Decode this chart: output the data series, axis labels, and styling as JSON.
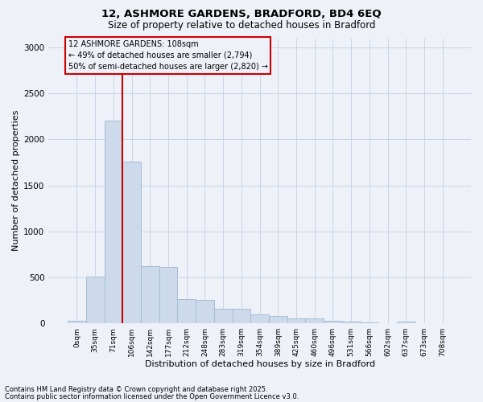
{
  "title": "12, ASHMORE GARDENS, BRADFORD, BD4 6EQ",
  "subtitle": "Size of property relative to detached houses in Bradford",
  "xlabel": "Distribution of detached houses by size in Bradford",
  "ylabel": "Number of detached properties",
  "bar_color": "#ccdaec",
  "bar_edge_color": "#a8bcd4",
  "grid_color": "#c8d4e4",
  "background_color": "#eef2f8",
  "annotation_line_color": "#cc0000",
  "footnote1": "Contains HM Land Registry data © Crown copyright and database right 2025.",
  "footnote2": "Contains public sector information licensed under the Open Government Licence v3.0.",
  "annotation_line1": "12 ASHMORE GARDENS: 108sqm",
  "annotation_line2": "← 49% of detached houses are smaller (2,794)",
  "annotation_line3": "50% of semi-detached houses are larger (2,820) →",
  "categories": [
    "0sqm",
    "35sqm",
    "71sqm",
    "106sqm",
    "142sqm",
    "177sqm",
    "212sqm",
    "248sqm",
    "283sqm",
    "319sqm",
    "354sqm",
    "389sqm",
    "425sqm",
    "460sqm",
    "496sqm",
    "531sqm",
    "566sqm",
    "602sqm",
    "637sqm",
    "673sqm",
    "708sqm"
  ],
  "bar_heights": [
    28,
    510,
    2200,
    1760,
    625,
    615,
    265,
    255,
    155,
    155,
    95,
    80,
    52,
    52,
    28,
    18,
    9,
    4,
    18,
    4,
    4
  ],
  "ylim_max": 3100,
  "yticks": [
    0,
    500,
    1000,
    1500,
    2000,
    2500,
    3000
  ],
  "red_line_index": 2.5
}
